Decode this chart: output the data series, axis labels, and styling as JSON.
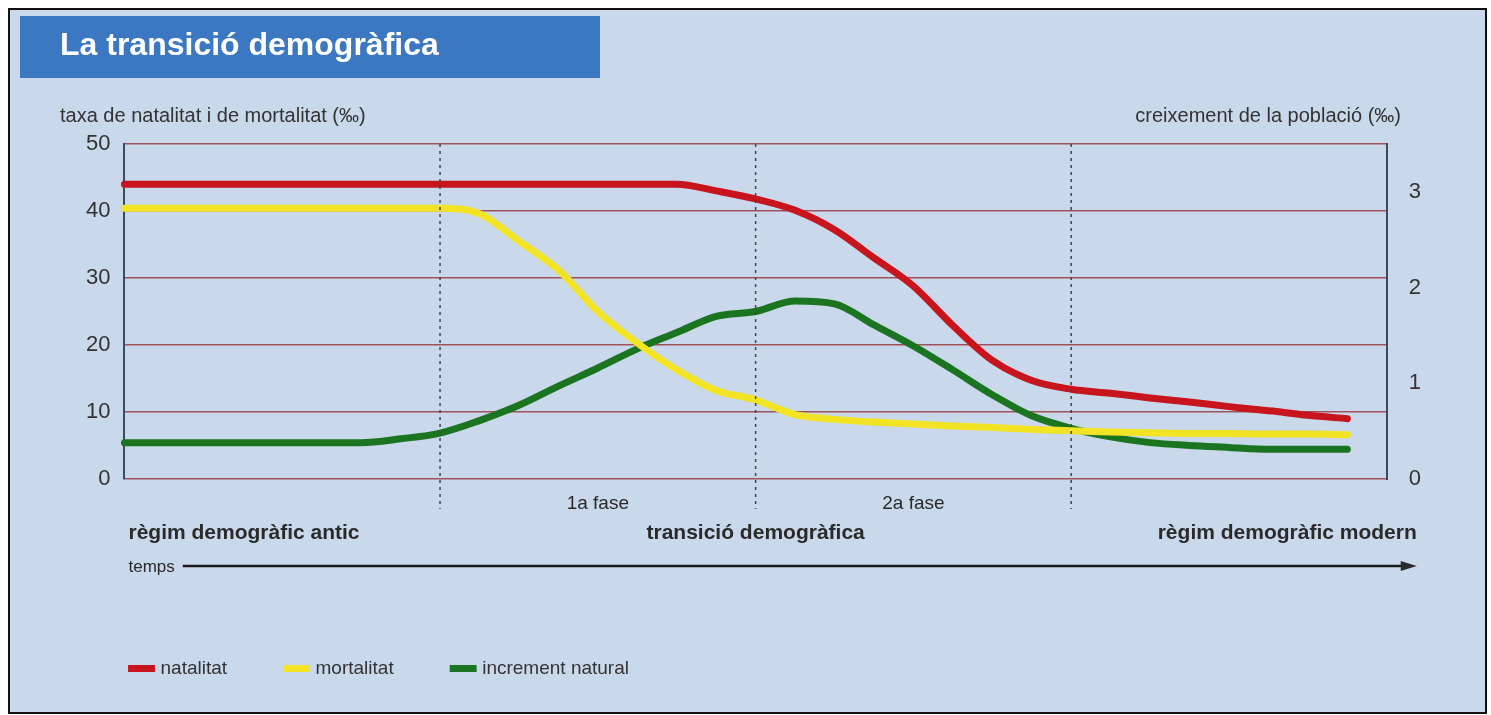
{
  "chart_data": {
    "type": "line",
    "title": "La transició demogràfica",
    "ylabel": "taxa de natalitat i de mortalitat (‰)",
    "y2label": "creixement de la població (‰)",
    "categories": [
      null,
      null,
      null,
      null,
      null,
      null,
      null,
      null,
      null,
      null,
      null,
      null,
      null,
      null,
      null,
      null,
      null,
      null,
      null,
      null,
      null,
      null,
      null,
      null,
      null,
      null,
      null,
      null,
      null,
      null,
      null,
      null,
      null
    ],
    "series": [
      {
        "name": "natalitat",
        "color": "#c8141c",
        "values": [
          44,
          44,
          44,
          44,
          44,
          44,
          44,
          44,
          44,
          44,
          44,
          44,
          44,
          44,
          44,
          43,
          41.8,
          40.1,
          37.2,
          33,
          28.8,
          22.9,
          17.7,
          14.7,
          13.4,
          12.8,
          12.1,
          11.5,
          10.8,
          10.2,
          9.5,
          9,
          null
        ]
      },
      {
        "name": "mortalitat",
        "color": "#f2e424",
        "values": [
          40.4,
          40.4,
          40.4,
          40.4,
          40.4,
          40.4,
          40.4,
          40.4,
          40.4,
          39.6,
          35.5,
          31.2,
          25,
          20.3,
          16.3,
          13.2,
          11.8,
          9.6,
          8.9,
          8.5,
          8.2,
          7.9,
          7.7,
          7.4,
          7.2,
          7,
          6.9,
          6.8,
          6.8,
          6.7,
          6.7,
          6.6,
          null
        ]
      },
      {
        "name": "increment natural",
        "color": "#1a7420",
        "axis": "y2",
        "values": [
          0.38,
          0.38,
          0.38,
          0.38,
          0.38,
          0.38,
          0.38,
          0.42,
          0.48,
          0.61,
          0.77,
          0.97,
          1.16,
          1.36,
          1.53,
          1.7,
          1.75,
          1.86,
          1.83,
          1.61,
          1.39,
          1.14,
          0.88,
          0.66,
          0.53,
          0.44,
          0.38,
          0.35,
          0.33,
          0.31,
          0.31,
          0.31,
          null
        ]
      }
    ],
    "ylim": [
      0,
      50
    ],
    "yticks": [
      0,
      10,
      20,
      30,
      40,
      50
    ],
    "y2lim": [
      0,
      3.5
    ],
    "y2ticks": [
      0,
      1,
      2,
      3
    ],
    "grid": true,
    "legend": "bottom",
    "marker": "none",
    "line_style": "solid",
    "annotations": [
      "1a fase",
      "2a fase",
      "règim demogràfic antic",
      "transició demogràfica",
      "règim demogràfic modern",
      "temps"
    ]
  }
}
